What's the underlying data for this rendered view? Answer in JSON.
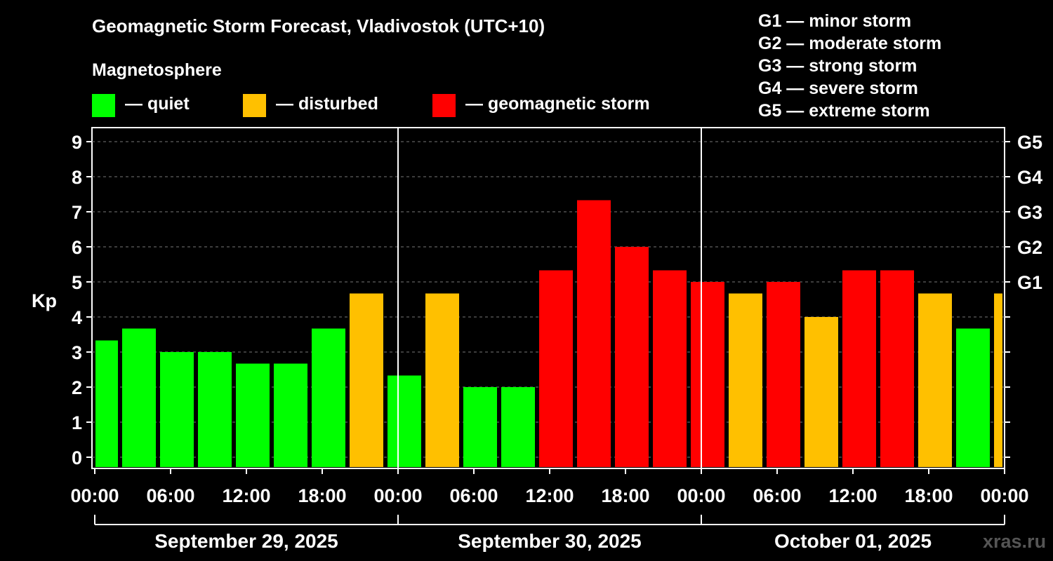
{
  "title": "Geomagnetic Storm Forecast, Vladivostok (UTC+10)",
  "subtitle": "Magnetosphere",
  "legend": [
    {
      "label": "— quiet",
      "color": "#00ff00"
    },
    {
      "label": "— disturbed",
      "color": "#ffc000"
    },
    {
      "label": "— geomagnetic storm",
      "color": "#ff0000"
    }
  ],
  "storm_scale": [
    "G1 — minor storm",
    "G2 — moderate storm",
    "G3 — strong storm",
    "G4 — severe storm",
    "G5 — extreme storm"
  ],
  "watermark": "xras.ru",
  "chart_data": {
    "type": "bar",
    "title": "Geomagnetic Storm Forecast, Vladivostok (UTC+10)",
    "ylabel": "Kp",
    "ylim": [
      0,
      9
    ],
    "yticks": [
      "0",
      "1",
      "2",
      "3",
      "4",
      "5",
      "6",
      "7",
      "8",
      "9"
    ],
    "right_axis_labels": [
      {
        "value": 5,
        "label": "G1"
      },
      {
        "value": 6,
        "label": "G2"
      },
      {
        "value": 7,
        "label": "G3"
      },
      {
        "value": 8,
        "label": "G4"
      },
      {
        "value": 9,
        "label": "G5"
      }
    ],
    "xtick_labels": [
      "00:00",
      "06:00",
      "12:00",
      "18:00",
      "00:00",
      "06:00",
      "12:00",
      "18:00",
      "00:00",
      "06:00",
      "12:00",
      "18:00",
      "00:00"
    ],
    "dates": [
      "September 29, 2025",
      "September 30, 2025",
      "October 01, 2025"
    ],
    "bars": [
      {
        "start": "00:00",
        "kp": 3.33,
        "level": "quiet"
      },
      {
        "start": "02:00",
        "kp": 3.67,
        "level": "quiet"
      },
      {
        "start": "05:00",
        "kp": 3.0,
        "level": "quiet"
      },
      {
        "start": "08:00",
        "kp": 3.0,
        "level": "quiet"
      },
      {
        "start": "11:00",
        "kp": 2.67,
        "level": "quiet"
      },
      {
        "start": "14:00",
        "kp": 2.67,
        "level": "quiet"
      },
      {
        "start": "17:00",
        "kp": 3.67,
        "level": "quiet"
      },
      {
        "start": "20:00",
        "kp": 4.67,
        "level": "disturbed"
      },
      {
        "start": "23:00",
        "kp": 2.33,
        "level": "quiet"
      },
      {
        "start": "02:00",
        "kp": 4.67,
        "level": "disturbed"
      },
      {
        "start": "05:00",
        "kp": 2.0,
        "level": "quiet"
      },
      {
        "start": "08:00",
        "kp": 2.0,
        "level": "quiet"
      },
      {
        "start": "11:00",
        "kp": 5.33,
        "level": "storm"
      },
      {
        "start": "14:00",
        "kp": 7.33,
        "level": "storm"
      },
      {
        "start": "17:00",
        "kp": 6.0,
        "level": "storm"
      },
      {
        "start": "20:00",
        "kp": 5.33,
        "level": "storm"
      },
      {
        "start": "23:00",
        "kp": 5.0,
        "level": "storm"
      },
      {
        "start": "02:00",
        "kp": 4.67,
        "level": "disturbed"
      },
      {
        "start": "05:00",
        "kp": 5.0,
        "level": "storm"
      },
      {
        "start": "08:00",
        "kp": 4.0,
        "level": "disturbed"
      },
      {
        "start": "11:00",
        "kp": 5.33,
        "level": "storm"
      },
      {
        "start": "14:00",
        "kp": 5.33,
        "level": "storm"
      },
      {
        "start": "17:00",
        "kp": 4.67,
        "level": "disturbed"
      },
      {
        "start": "20:00",
        "kp": 3.67,
        "level": "quiet"
      },
      {
        "start": "23:00",
        "kp": 4.67,
        "level": "disturbed"
      }
    ],
    "colors": {
      "quiet": "#00ff00",
      "disturbed": "#ffc000",
      "storm": "#ff0000"
    },
    "grid": "dashed horizontal"
  }
}
